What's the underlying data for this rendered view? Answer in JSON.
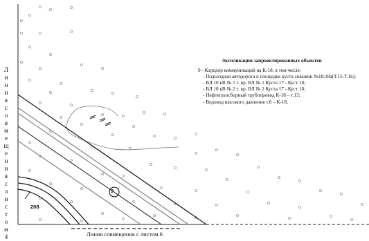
{
  "left_caption_letters": [
    "Л",
    "и",
    "н",
    "и",
    "я",
    "с",
    "о",
    "в",
    "м",
    "е",
    "щ",
    "е",
    "н",
    "и",
    "я",
    "с",
    "л",
    "и",
    "с",
    "т",
    "о",
    "м",
    "4"
  ],
  "bottom_caption": "Линия совмещения с листом 6",
  "legend": {
    "title": "Экспликация запроектированных объектов",
    "item": "9 - Коридор коммуникаций на К-18, в том числе:",
    "subitems": [
      "- Подъездная автодорога к площадке куста скважин №18;18а(Т.15-Т.16);",
      "- ВЛ 10 кВ № 1  т. вр. ВЛ № 1 Куста 17 - Куст 18;",
      "- ВЛ 10 кВ № 2  т. вр. ВЛ № 2 Куста 17 - Куст 18;",
      "- Нефтегазосборный трубопровод  К-18 – т.13;",
      "- Водовод  высокого  давления т.6 – К-18;"
    ]
  },
  "labels": {
    "contour": "208",
    "corridor_marker": "9"
  },
  "colors": {
    "line_dark": "#1a1a1a",
    "line_gray": "#8a8a8a",
    "dot": "#9a9a9a"
  }
}
